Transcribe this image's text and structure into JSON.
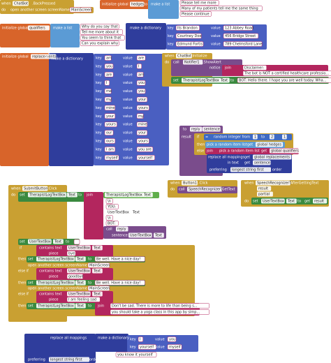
{
  "blocks": [
    {
      "texts": [
        "when",
        "ChatBot",
        ".BackPressed",
        "do",
        "open another screen  screenName",
        "MainScreen"
      ]
    },
    {
      "texts": [
        "initialize global",
        "hedges",
        "to",
        "make a list",
        "Please tell me more",
        "Many of my patients tell me the same thing",
        "Please continue"
      ]
    },
    {
      "texts": [
        "initialize global",
        "qualifiers",
        "to",
        "make a list",
        "Why do you say that",
        "Tell me more about it",
        "You seem to think that",
        "Can you explain why"
      ]
    },
    {
      "texts": [
        "make a dictionary",
        "key",
        "Its Brandon",
        "value",
        "123 Abbey Road",
        "key",
        "Courtney Doe",
        "value",
        "456 Bridge Street",
        "key",
        "Edmund Fortis",
        "value",
        "789 Chelmsford Lane"
      ]
    },
    {
      "texts": [
        "initialize global",
        "replacements",
        "to",
        "make a dictionary",
        "key",
        "am",
        "value",
        "are",
        "key",
        "you",
        "value",
        "I",
        "key",
        "are",
        "value",
        "am",
        "key",
        "I",
        "value",
        "you",
        "key",
        "me",
        "value",
        "you",
        "key",
        "my",
        "value",
        "your",
        "key",
        "mine",
        "value",
        "yours",
        "key",
        "your",
        "value",
        "my",
        "key",
        "yours",
        "value",
        "mine",
        "key",
        "our",
        "value",
        "your",
        "key",
        "ours",
        "value",
        "yours",
        "key",
        "I am",
        "value",
        "you are",
        "key",
        "myself",
        "value",
        "yourself"
      ]
    },
    {
      "texts": [
        "when",
        "ChatBot",
        ".Initialize",
        "do",
        "call",
        "Notifier1",
        ".ShowAlert",
        "notice",
        "join",
        "Disclaimer:",
        "The bot is NOT a certified healthcare professio...",
        "set",
        "TherapistLogTextBox",
        "Text",
        "to",
        "BOT: Hello there. I hope you are well today. Wha..."
      ]
    },
    {
      "texts": [
        "to",
        "reply",
        "sentence",
        "result",
        "if",
        "=",
        "random integer from",
        "1",
        "to",
        "2",
        "1",
        "then",
        "pick a random item  list",
        "get",
        "global hedges",
        "else",
        "join",
        "pick a random item  list",
        "get",
        "global qualifiers",
        "replace all mappings",
        "get",
        "global replacements",
        "in text",
        "get",
        "sentence",
        "preferring",
        "longest string first",
        "order"
      ]
    },
    {
      "texts": [
        "when",
        "SubmitButton",
        ".Click",
        "do",
        "set",
        "TherapistLogTextBox",
        "Text",
        "to",
        "join",
        "TherapistLogTextBox",
        "Text",
        "\\n",
        "YOU: ",
        "UserTextBox",
        "Text",
        "\\n",
        "BOT: ",
        "call",
        "reply",
        "sentence",
        "UserTextBox",
        "Text",
        "set",
        "UserTextBox",
        "Text",
        "to",
        "if",
        "contains text",
        "UserTextBox",
        "Text",
        "piece",
        "bye",
        "then",
        "set",
        "TherapistLogTextBox",
        "Text",
        "to",
        "Be well. Have a nice day!",
        "open another screen  screenName",
        "MainScreen",
        "else if",
        "contains text",
        "UserTextBox",
        "Text",
        "piece",
        "goodbye",
        "then",
        "set",
        "TherapistLogTextBox",
        "Text",
        "to",
        "Be well. Have a nice day!",
        "open another screen  screenName",
        "MainScreen",
        "else if",
        "contains text",
        "UserTextBox",
        "Text",
        "piece",
        "I am feeling sad",
        "then",
        "set",
        "TherapistLogTextBox",
        "Text",
        "to",
        "join",
        "Don't be sad. There is more to life than being s...",
        "you should take a yoga class in this app by simp..."
      ]
    },
    {
      "texts": [
        "when",
        "Button1",
        ".Click",
        "do",
        "call",
        "SpeechRecognizer1",
        ".GetText"
      ]
    },
    {
      "texts": [
        "when",
        "SpeechRecognizer1",
        ".AfterGettingText",
        "result",
        "partial",
        "do",
        "set",
        "UserTextBox",
        "Text",
        "to",
        "get",
        "result"
      ]
    },
    {
      "texts": [
        "replace all mappings",
        "in text",
        "you know it yourself",
        "make a dictionary",
        "key",
        "I",
        "value",
        "you",
        "key",
        "yourself",
        "value",
        "myself",
        "preferring",
        "longest string first",
        "order"
      ]
    }
  ]
}
